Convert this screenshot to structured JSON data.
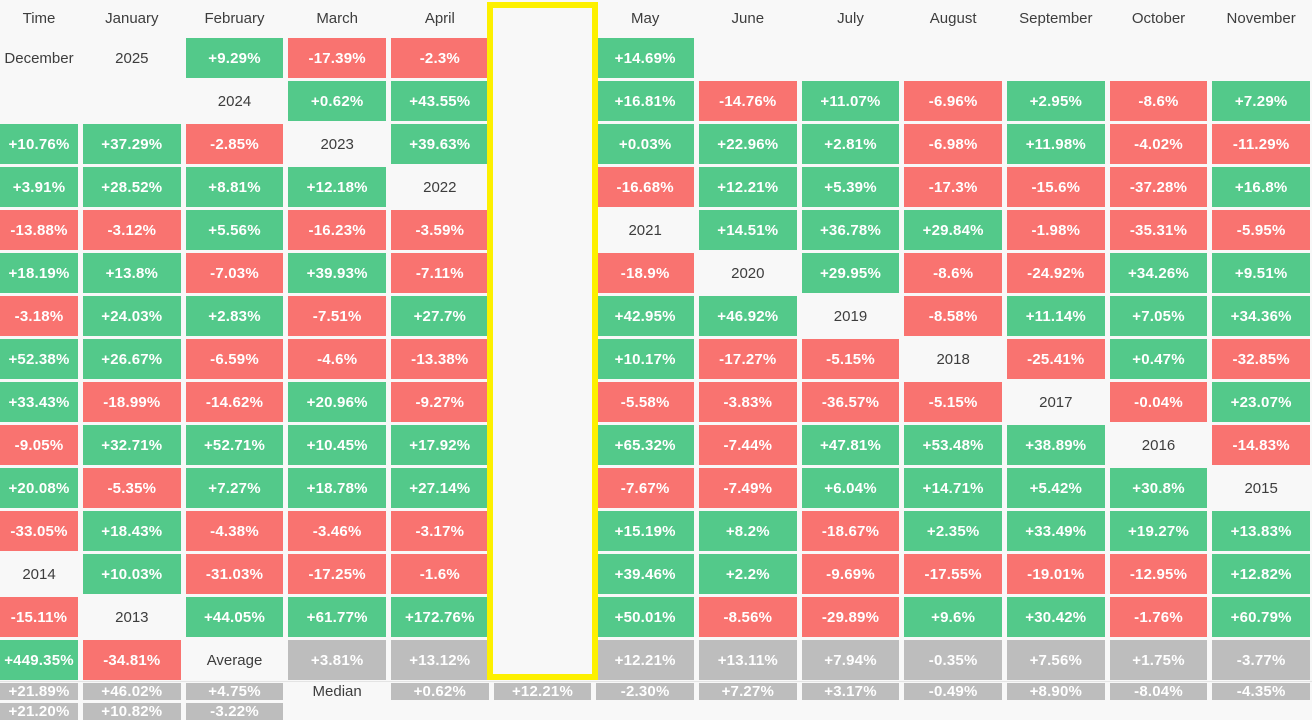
{
  "palette": {
    "background": "#f8f8f8",
    "positive": "#53c98a",
    "negative": "#f97370",
    "summary": "#bdbdbd",
    "highlight": "#fdf000",
    "cell_text": "#ffffff",
    "label_text": "#3d3d3d",
    "baseline": "#e4e4e4"
  },
  "table": {
    "time_header": "Time",
    "columns": [
      "January",
      "February",
      "March",
      "April",
      "May",
      "June",
      "July",
      "August",
      "September",
      "October",
      "November",
      "December"
    ],
    "highlight_column": "May",
    "rows": [
      {
        "label": "2025",
        "kind": "year",
        "values": [
          "+9.29%",
          "-17.39%",
          "-2.3%",
          "+14.69%",
          "",
          "",
          "",
          "",
          "",
          "",
          "",
          ""
        ]
      },
      {
        "label": "2024",
        "kind": "year",
        "values": [
          "+0.62%",
          "+43.55%",
          "+16.81%",
          "-14.76%",
          "+11.07%",
          "-6.96%",
          "+2.95%",
          "-8.6%",
          "+7.29%",
          "+10.76%",
          "+37.29%",
          "-2.85%"
        ]
      },
      {
        "label": "2023",
        "kind": "year",
        "values": [
          "+39.63%",
          "+0.03%",
          "+22.96%",
          "+2.81%",
          "-6.98%",
          "+11.98%",
          "-4.02%",
          "-11.29%",
          "+3.91%",
          "+28.52%",
          "+8.81%",
          "+12.18%"
        ]
      },
      {
        "label": "2022",
        "kind": "year",
        "values": [
          "-16.68%",
          "+12.21%",
          "+5.39%",
          "-17.3%",
          "-15.6%",
          "-37.28%",
          "+16.8%",
          "-13.88%",
          "-3.12%",
          "+5.56%",
          "-16.23%",
          "-3.59%"
        ]
      },
      {
        "label": "2021",
        "kind": "year",
        "values": [
          "+14.51%",
          "+36.78%",
          "+29.84%",
          "-1.98%",
          "-35.31%",
          "-5.95%",
          "+18.19%",
          "+13.8%",
          "-7.03%",
          "+39.93%",
          "-7.11%",
          "-18.9%"
        ]
      },
      {
        "label": "2020",
        "kind": "year",
        "values": [
          "+29.95%",
          "-8.6%",
          "-24.92%",
          "+34.26%",
          "+9.51%",
          "-3.18%",
          "+24.03%",
          "+2.83%",
          "-7.51%",
          "+27.7%",
          "+42.95%",
          "+46.92%"
        ]
      },
      {
        "label": "2019",
        "kind": "year",
        "values": [
          "-8.58%",
          "+11.14%",
          "+7.05%",
          "+34.36%",
          "+52.38%",
          "+26.67%",
          "-6.59%",
          "-4.6%",
          "-13.38%",
          "+10.17%",
          "-17.27%",
          "-5.15%"
        ]
      },
      {
        "label": "2018",
        "kind": "year",
        "values": [
          "-25.41%",
          "+0.47%",
          "-32.85%",
          "+33.43%",
          "-18.99%",
          "-14.62%",
          "+20.96%",
          "-9.27%",
          "-5.58%",
          "-3.83%",
          "-36.57%",
          "-5.15%"
        ]
      },
      {
        "label": "2017",
        "kind": "year",
        "values": [
          "-0.04%",
          "+23.07%",
          "-9.05%",
          "+32.71%",
          "+52.71%",
          "+10.45%",
          "+17.92%",
          "+65.32%",
          "-7.44%",
          "+47.81%",
          "+53.48%",
          "+38.89%"
        ]
      },
      {
        "label": "2016",
        "kind": "year",
        "values": [
          "-14.83%",
          "+20.08%",
          "-5.35%",
          "+7.27%",
          "+18.78%",
          "+27.14%",
          "-7.67%",
          "-7.49%",
          "+6.04%",
          "+14.71%",
          "+5.42%",
          "+30.8%"
        ]
      },
      {
        "label": "2015",
        "kind": "year",
        "values": [
          "-33.05%",
          "+18.43%",
          "-4.38%",
          "-3.46%",
          "-3.17%",
          "+15.19%",
          "+8.2%",
          "-18.67%",
          "+2.35%",
          "+33.49%",
          "+19.27%",
          "+13.83%"
        ]
      },
      {
        "label": "2014",
        "kind": "year",
        "values": [
          "+10.03%",
          "-31.03%",
          "-17.25%",
          "-1.6%",
          "+39.46%",
          "+2.2%",
          "-9.69%",
          "-17.55%",
          "-19.01%",
          "-12.95%",
          "+12.82%",
          "-15.11%"
        ]
      },
      {
        "label": "2013",
        "kind": "year",
        "values": [
          "+44.05%",
          "+61.77%",
          "+172.76%",
          "+50.01%",
          "-8.56%",
          "-29.89%",
          "+9.6%",
          "+30.42%",
          "-1.76%",
          "+60.79%",
          "+449.35%",
          "-34.81%"
        ]
      },
      {
        "label": "Average",
        "kind": "summary",
        "values": [
          "+3.81%",
          "+13.12%",
          "+12.21%",
          "+13.11%",
          "+7.94%",
          "-0.35%",
          "+7.56%",
          "+1.75%",
          "-3.77%",
          "+21.89%",
          "+46.02%",
          "+4.75%"
        ]
      },
      {
        "label": "Median",
        "kind": "summary",
        "values": [
          "+0.62%",
          "+12.21%",
          "-2.30%",
          "+7.27%",
          "+3.17%",
          "-0.49%",
          "+8.90%",
          "-8.04%",
          "-4.35%",
          "+21.20%",
          "+10.82%",
          "-3.22%"
        ]
      }
    ]
  },
  "chart_data": {
    "type": "heatmap",
    "x_categories": [
      "January",
      "February",
      "March",
      "April",
      "May",
      "June",
      "July",
      "August",
      "September",
      "October",
      "November",
      "December"
    ],
    "y_categories": [
      "2025",
      "2024",
      "2023",
      "2022",
      "2021",
      "2020",
      "2019",
      "2018",
      "2017",
      "2016",
      "2015",
      "2014",
      "2013",
      "Average",
      "Median"
    ],
    "values_pct": [
      [
        9.29,
        -17.39,
        -2.3,
        14.69,
        null,
        null,
        null,
        null,
        null,
        null,
        null,
        null
      ],
      [
        0.62,
        43.55,
        16.81,
        -14.76,
        11.07,
        -6.96,
        2.95,
        -8.6,
        7.29,
        10.76,
        37.29,
        -2.85
      ],
      [
        39.63,
        0.03,
        22.96,
        2.81,
        -6.98,
        11.98,
        -4.02,
        -11.29,
        3.91,
        28.52,
        8.81,
        12.18
      ],
      [
        -16.68,
        12.21,
        5.39,
        -17.3,
        -15.6,
        -37.28,
        16.8,
        -13.88,
        -3.12,
        5.56,
        -16.23,
        -3.59
      ],
      [
        14.51,
        36.78,
        29.84,
        -1.98,
        -35.31,
        -5.95,
        18.19,
        13.8,
        -7.03,
        39.93,
        -7.11,
        -18.9
      ],
      [
        29.95,
        -8.6,
        -24.92,
        34.26,
        9.51,
        -3.18,
        24.03,
        2.83,
        -7.51,
        27.7,
        42.95,
        46.92
      ],
      [
        -8.58,
        11.14,
        7.05,
        34.36,
        52.38,
        26.67,
        -6.59,
        -4.6,
        -13.38,
        10.17,
        -17.27,
        -5.15
      ],
      [
        -25.41,
        0.47,
        -32.85,
        33.43,
        -18.99,
        -14.62,
        20.96,
        -9.27,
        -5.58,
        -3.83,
        -36.57,
        -5.15
      ],
      [
        -0.04,
        23.07,
        -9.05,
        32.71,
        52.71,
        10.45,
        17.92,
        65.32,
        -7.44,
        47.81,
        53.48,
        38.89
      ],
      [
        -14.83,
        20.08,
        -5.35,
        7.27,
        18.78,
        27.14,
        -7.67,
        -7.49,
        6.04,
        14.71,
        5.42,
        30.8
      ],
      [
        -33.05,
        18.43,
        -4.38,
        -3.46,
        -3.17,
        15.19,
        8.2,
        -18.67,
        2.35,
        33.49,
        19.27,
        13.83
      ],
      [
        10.03,
        -31.03,
        -17.25,
        -1.6,
        39.46,
        2.2,
        -9.69,
        -17.55,
        -19.01,
        -12.95,
        12.82,
        -15.11
      ],
      [
        44.05,
        61.77,
        172.76,
        50.01,
        -8.56,
        -29.89,
        9.6,
        30.42,
        -1.76,
        60.79,
        449.35,
        -34.81
      ],
      [
        3.81,
        13.12,
        12.21,
        13.11,
        7.94,
        -0.35,
        7.56,
        1.75,
        -3.77,
        21.89,
        46.02,
        4.75
      ],
      [
        0.62,
        12.21,
        -2.3,
        7.27,
        3.17,
        -0.49,
        8.9,
        -8.04,
        -4.35,
        21.2,
        10.82,
        -3.22
      ]
    ],
    "highlighted_column": "May",
    "legend": "green = positive month, red = negative month, gray = Average/Median summary rows",
    "grid": false
  }
}
